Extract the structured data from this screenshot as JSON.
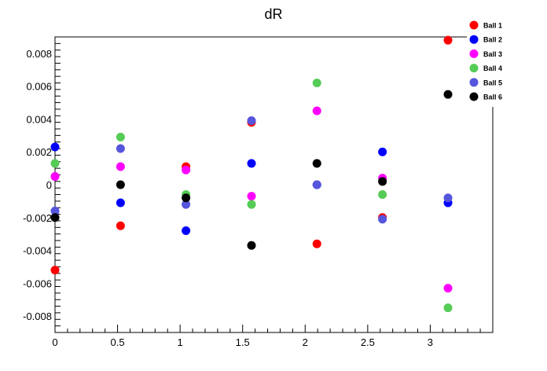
{
  "chart_data": {
    "type": "scatter",
    "title": "dR",
    "xlabel": "",
    "ylabel": "",
    "xlim": [
      0,
      3.5
    ],
    "ylim": [
      -0.009,
      0.009
    ],
    "x_ticks": [
      0,
      0.5,
      1,
      1.5,
      2,
      2.5,
      3
    ],
    "x_tick_labels": [
      "0",
      "0.5",
      "1",
      "1.5",
      "2",
      "2.5",
      "3"
    ],
    "y_ticks": [
      -0.008,
      -0.006,
      -0.004,
      -0.002,
      0,
      0.002,
      0.004,
      0.006,
      0.008
    ],
    "y_tick_labels": [
      "-0.008",
      "-0.006",
      "-0.004",
      "-0.002",
      "0",
      "0.002",
      "0.004",
      "0.006",
      "0.008"
    ],
    "grid": false,
    "legend_position": "top-right",
    "x": [
      0,
      0.524,
      1.047,
      1.571,
      2.094,
      2.618,
      3.142
    ],
    "series": [
      {
        "name": "Ball 1",
        "color": "#ff0000",
        "values": [
          -0.0052,
          -0.0025,
          0.0011,
          0.0038,
          -0.0036,
          -0.002,
          0.0088
        ]
      },
      {
        "name": "Ball 2",
        "color": "#0000ff",
        "values": [
          0.0023,
          -0.0011,
          -0.0028,
          0.0013,
          0.0,
          0.002,
          -0.0011
        ]
      },
      {
        "name": "Ball 3",
        "color": "#ff00ff",
        "values": [
          0.0005,
          0.0011,
          0.0009,
          -0.0007,
          0.0045,
          0.0004,
          -0.0063
        ]
      },
      {
        "name": "Ball 4",
        "color": "#55cc55",
        "values": [
          0.0013,
          0.0029,
          -0.0006,
          -0.0012,
          0.0062,
          -0.0006,
          -0.0075
        ]
      },
      {
        "name": "Ball 5",
        "color": "#5555dd",
        "values": [
          -0.0016,
          0.0022,
          -0.0012,
          0.0039,
          0.0,
          -0.0021,
          -0.0008
        ]
      },
      {
        "name": "Ball 6",
        "color": "#000000",
        "values": [
          -0.002,
          0.0,
          -0.0008,
          -0.0037,
          0.0013,
          0.0002,
          0.0055
        ]
      }
    ]
  }
}
